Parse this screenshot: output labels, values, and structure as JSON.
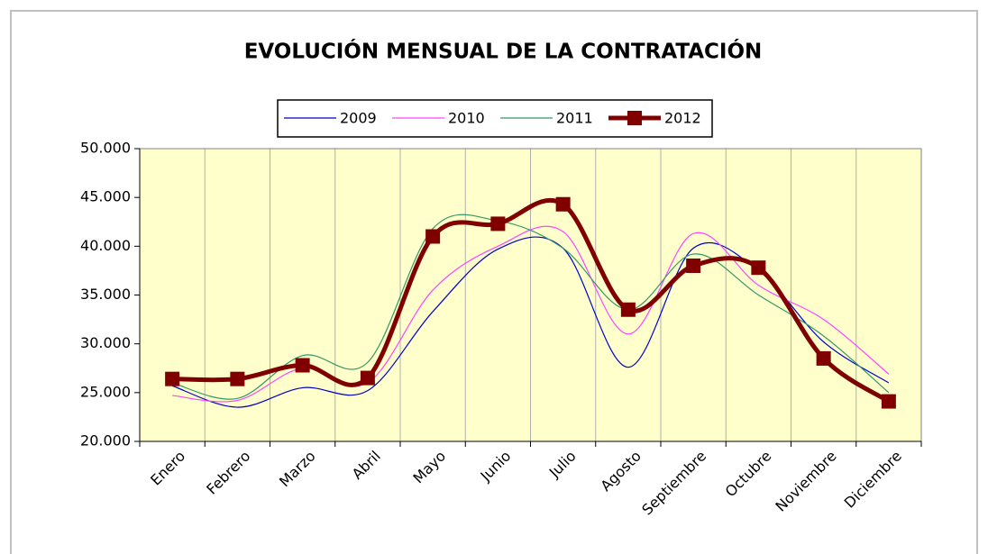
{
  "chart_data": {
    "type": "line",
    "title": "EVOLUCIÓN MENSUAL DE LA CONTRATACIÓN",
    "categories": [
      "Enero",
      "Febrero",
      "Marzo",
      "Abril",
      "Mayo",
      "Junio",
      "Julio",
      "Agosto",
      "Septiembre",
      "Octubre",
      "Noviembre",
      "Diciembre"
    ],
    "series": [
      {
        "name": "2009",
        "color": "#0000cc",
        "values": [
          25700,
          23500,
          25500,
          25200,
          33300,
          39700,
          39800,
          27600,
          39800,
          37500,
          30200,
          26000
        ]
      },
      {
        "name": "2010",
        "color": "#ff44ff",
        "values": [
          24700,
          24200,
          27500,
          26000,
          35500,
          40000,
          41500,
          31000,
          41300,
          36000,
          32500,
          26900
        ]
      },
      {
        "name": "2011",
        "color": "#339966",
        "values": [
          26000,
          24400,
          28800,
          28100,
          41800,
          42600,
          39800,
          33500,
          39200,
          35000,
          30800,
          25000
        ]
      },
      {
        "name": "2012",
        "color": "#800000",
        "marker": "square",
        "values": [
          26400,
          26400,
          27800,
          26500,
          41000,
          42300,
          44300,
          33500,
          38000,
          37800,
          28500,
          24100
        ]
      }
    ],
    "ylim": [
      20000,
      50000
    ],
    "yticks": [
      {
        "value": 20000,
        "label": "20.000"
      },
      {
        "value": 25000,
        "label": "25.000"
      },
      {
        "value": 30000,
        "label": "30.000"
      },
      {
        "value": 35000,
        "label": "35.000"
      },
      {
        "value": 40000,
        "label": "40.000"
      },
      {
        "value": 45000,
        "label": "45.000"
      },
      {
        "value": 50000,
        "label": "50.000"
      }
    ],
    "grid": true
  }
}
